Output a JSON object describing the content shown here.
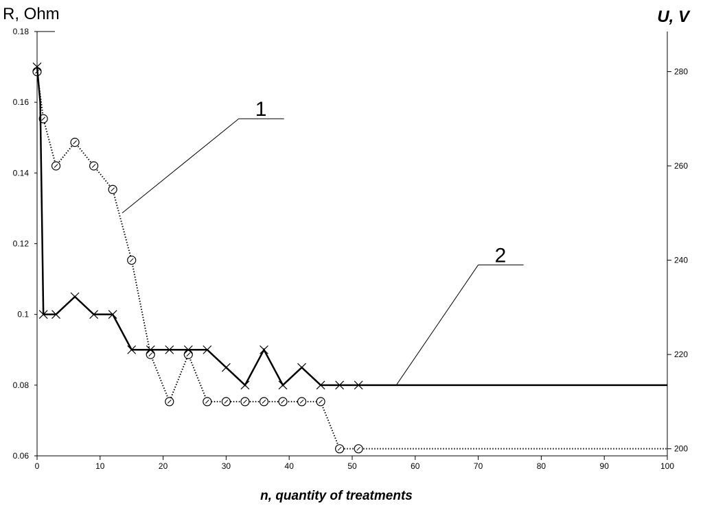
{
  "chart_data": {
    "type": "line",
    "xlabel": "n, quantity of treatments",
    "ylabel_left": "R, Ohm",
    "ylabel_right": "U, V",
    "xlim": [
      0,
      100
    ],
    "ylim_left": [
      0.06,
      0.18
    ],
    "ylim_right": [
      198.5,
      288.5
    ],
    "x_ticks": [
      0,
      10,
      20,
      30,
      40,
      50,
      60,
      70,
      80,
      90,
      100
    ],
    "y_left_ticks": [
      0.06,
      0.08,
      0.1,
      0.12,
      0.14,
      0.16,
      0.18
    ],
    "y_right_ticks": [
      200,
      220,
      240,
      260,
      280
    ],
    "x_tick_labels": [
      "0",
      "10",
      "20",
      "30",
      "40",
      "50",
      "60",
      "70",
      "80",
      "90",
      "100"
    ],
    "y_left_tick_labels": [
      "0.06",
      "0.08",
      "0.1",
      "0.12",
      "0.14",
      "0.16",
      "0.18"
    ],
    "y_right_tick_labels": [
      "200",
      "220",
      "240",
      "260",
      "280"
    ],
    "grid": false,
    "series": [
      {
        "name": "1",
        "axis": "right",
        "style": "dotted",
        "marker": "circle",
        "x": [
          0,
          1,
          3,
          6,
          9,
          12,
          15,
          18,
          21,
          24,
          27,
          30,
          33,
          36,
          39,
          42,
          45,
          48,
          51,
          100
        ],
        "y": [
          280,
          270,
          260,
          265,
          260,
          255,
          240,
          220,
          210,
          220,
          210,
          210,
          210,
          210,
          210,
          210,
          210,
          200,
          200,
          200
        ],
        "markers_at": [
          0,
          1,
          3,
          6,
          9,
          12,
          15,
          18,
          21,
          24,
          27,
          30,
          33,
          36,
          39,
          42,
          45,
          48,
          51
        ]
      },
      {
        "name": "2",
        "axis": "left",
        "style": "solid",
        "marker": "x",
        "x": [
          0,
          0.5,
          1,
          3,
          6,
          9,
          12,
          15,
          18,
          21,
          24,
          27,
          30,
          33,
          36,
          39,
          42,
          45,
          48,
          51,
          100
        ],
        "y": [
          0.17,
          0.16,
          0.1,
          0.1,
          0.105,
          0.1,
          0.1,
          0.09,
          0.09,
          0.09,
          0.09,
          0.09,
          0.085,
          0.08,
          0.09,
          0.08,
          0.085,
          0.08,
          0.08,
          0.08,
          0.08
        ],
        "markers_at": [
          0,
          1,
          3,
          6,
          9,
          12,
          15,
          18,
          21,
          24,
          27,
          30,
          33,
          36,
          39,
          42,
          45,
          48,
          51
        ]
      }
    ],
    "annotations": [
      {
        "text": "1",
        "series": "1",
        "anchor": {
          "x": 13.5,
          "y": 250
        },
        "label_at": {
          "x": 32,
          "y": 270
        }
      },
      {
        "text": "2",
        "series": "2",
        "anchor": {
          "x": 57,
          "y": 0.08
        },
        "label_at": {
          "x": 70,
          "y": 0.114
        }
      }
    ]
  }
}
